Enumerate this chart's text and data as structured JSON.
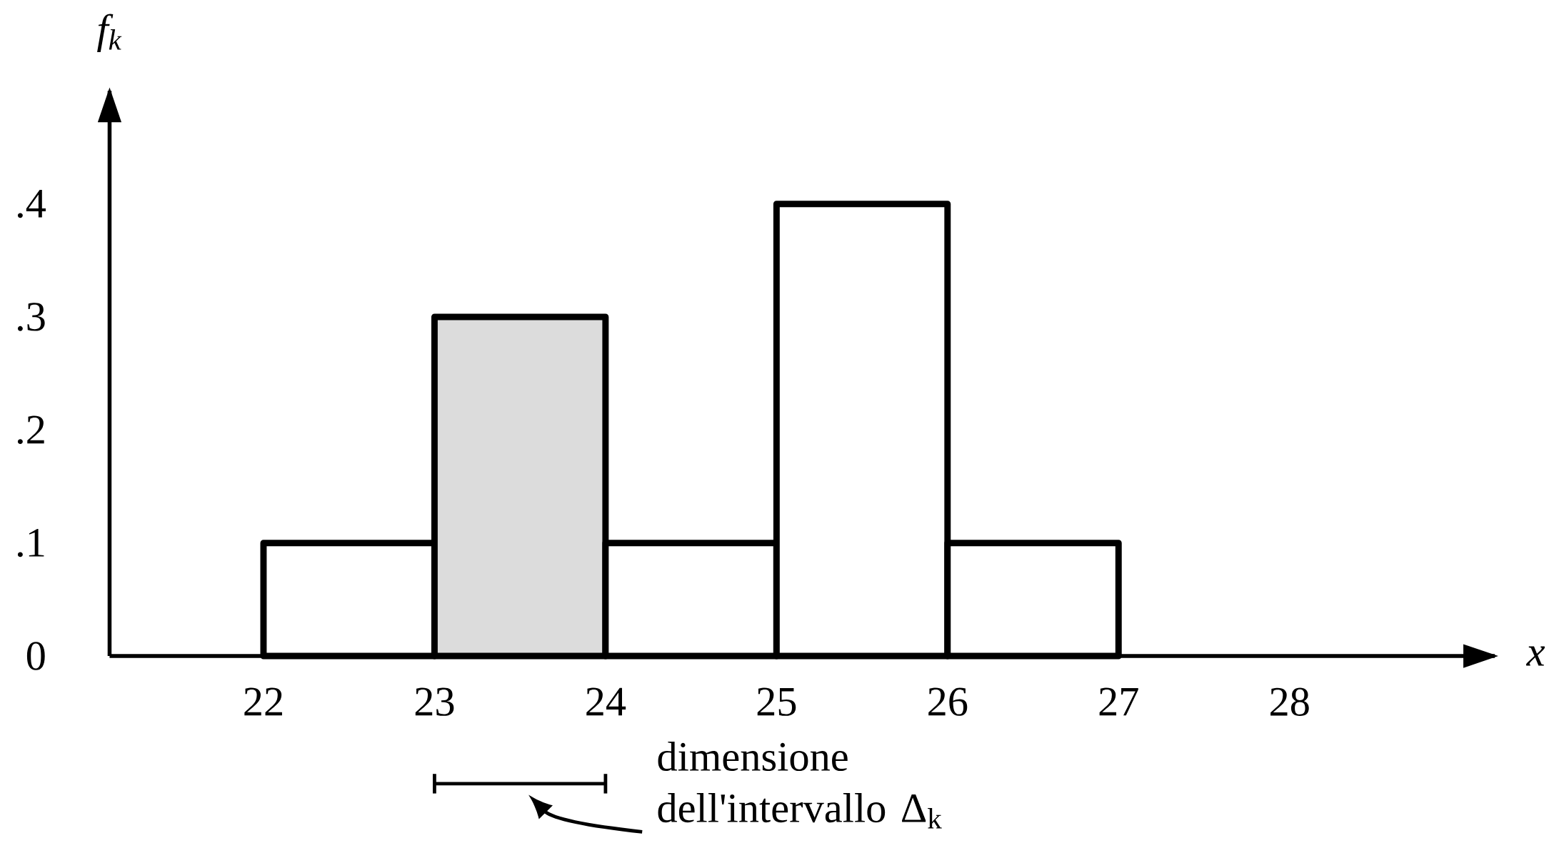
{
  "chart_data": {
    "type": "histogram",
    "bins": [
      22,
      23,
      24,
      25,
      26,
      27
    ],
    "values": [
      0.1,
      0.3,
      0.1,
      0.4,
      0.1
    ],
    "colors": [
      "#ffffff",
      "#dcdcdc",
      "#ffffff",
      "#ffffff",
      "#ffffff"
    ],
    "xlim": [
      21.1,
      29.2
    ],
    "ylim": [
      0,
      0.5
    ],
    "xticks": [
      22,
      23,
      24,
      25,
      26,
      27,
      28
    ],
    "yticks": [
      0,
      {
        "value": 0.1,
        "label": ".1"
      },
      {
        "value": 0.2,
        "label": ".2"
      },
      {
        "value": 0.3,
        "label": ".3"
      },
      {
        "value": 0.4,
        "label": ".4"
      }
    ],
    "xlabel": "x",
    "ylabel": "f$_{k}$",
    "annotations": [
      "dimensione dell'intervallo Δ$_{k}$"
    ]
  }
}
